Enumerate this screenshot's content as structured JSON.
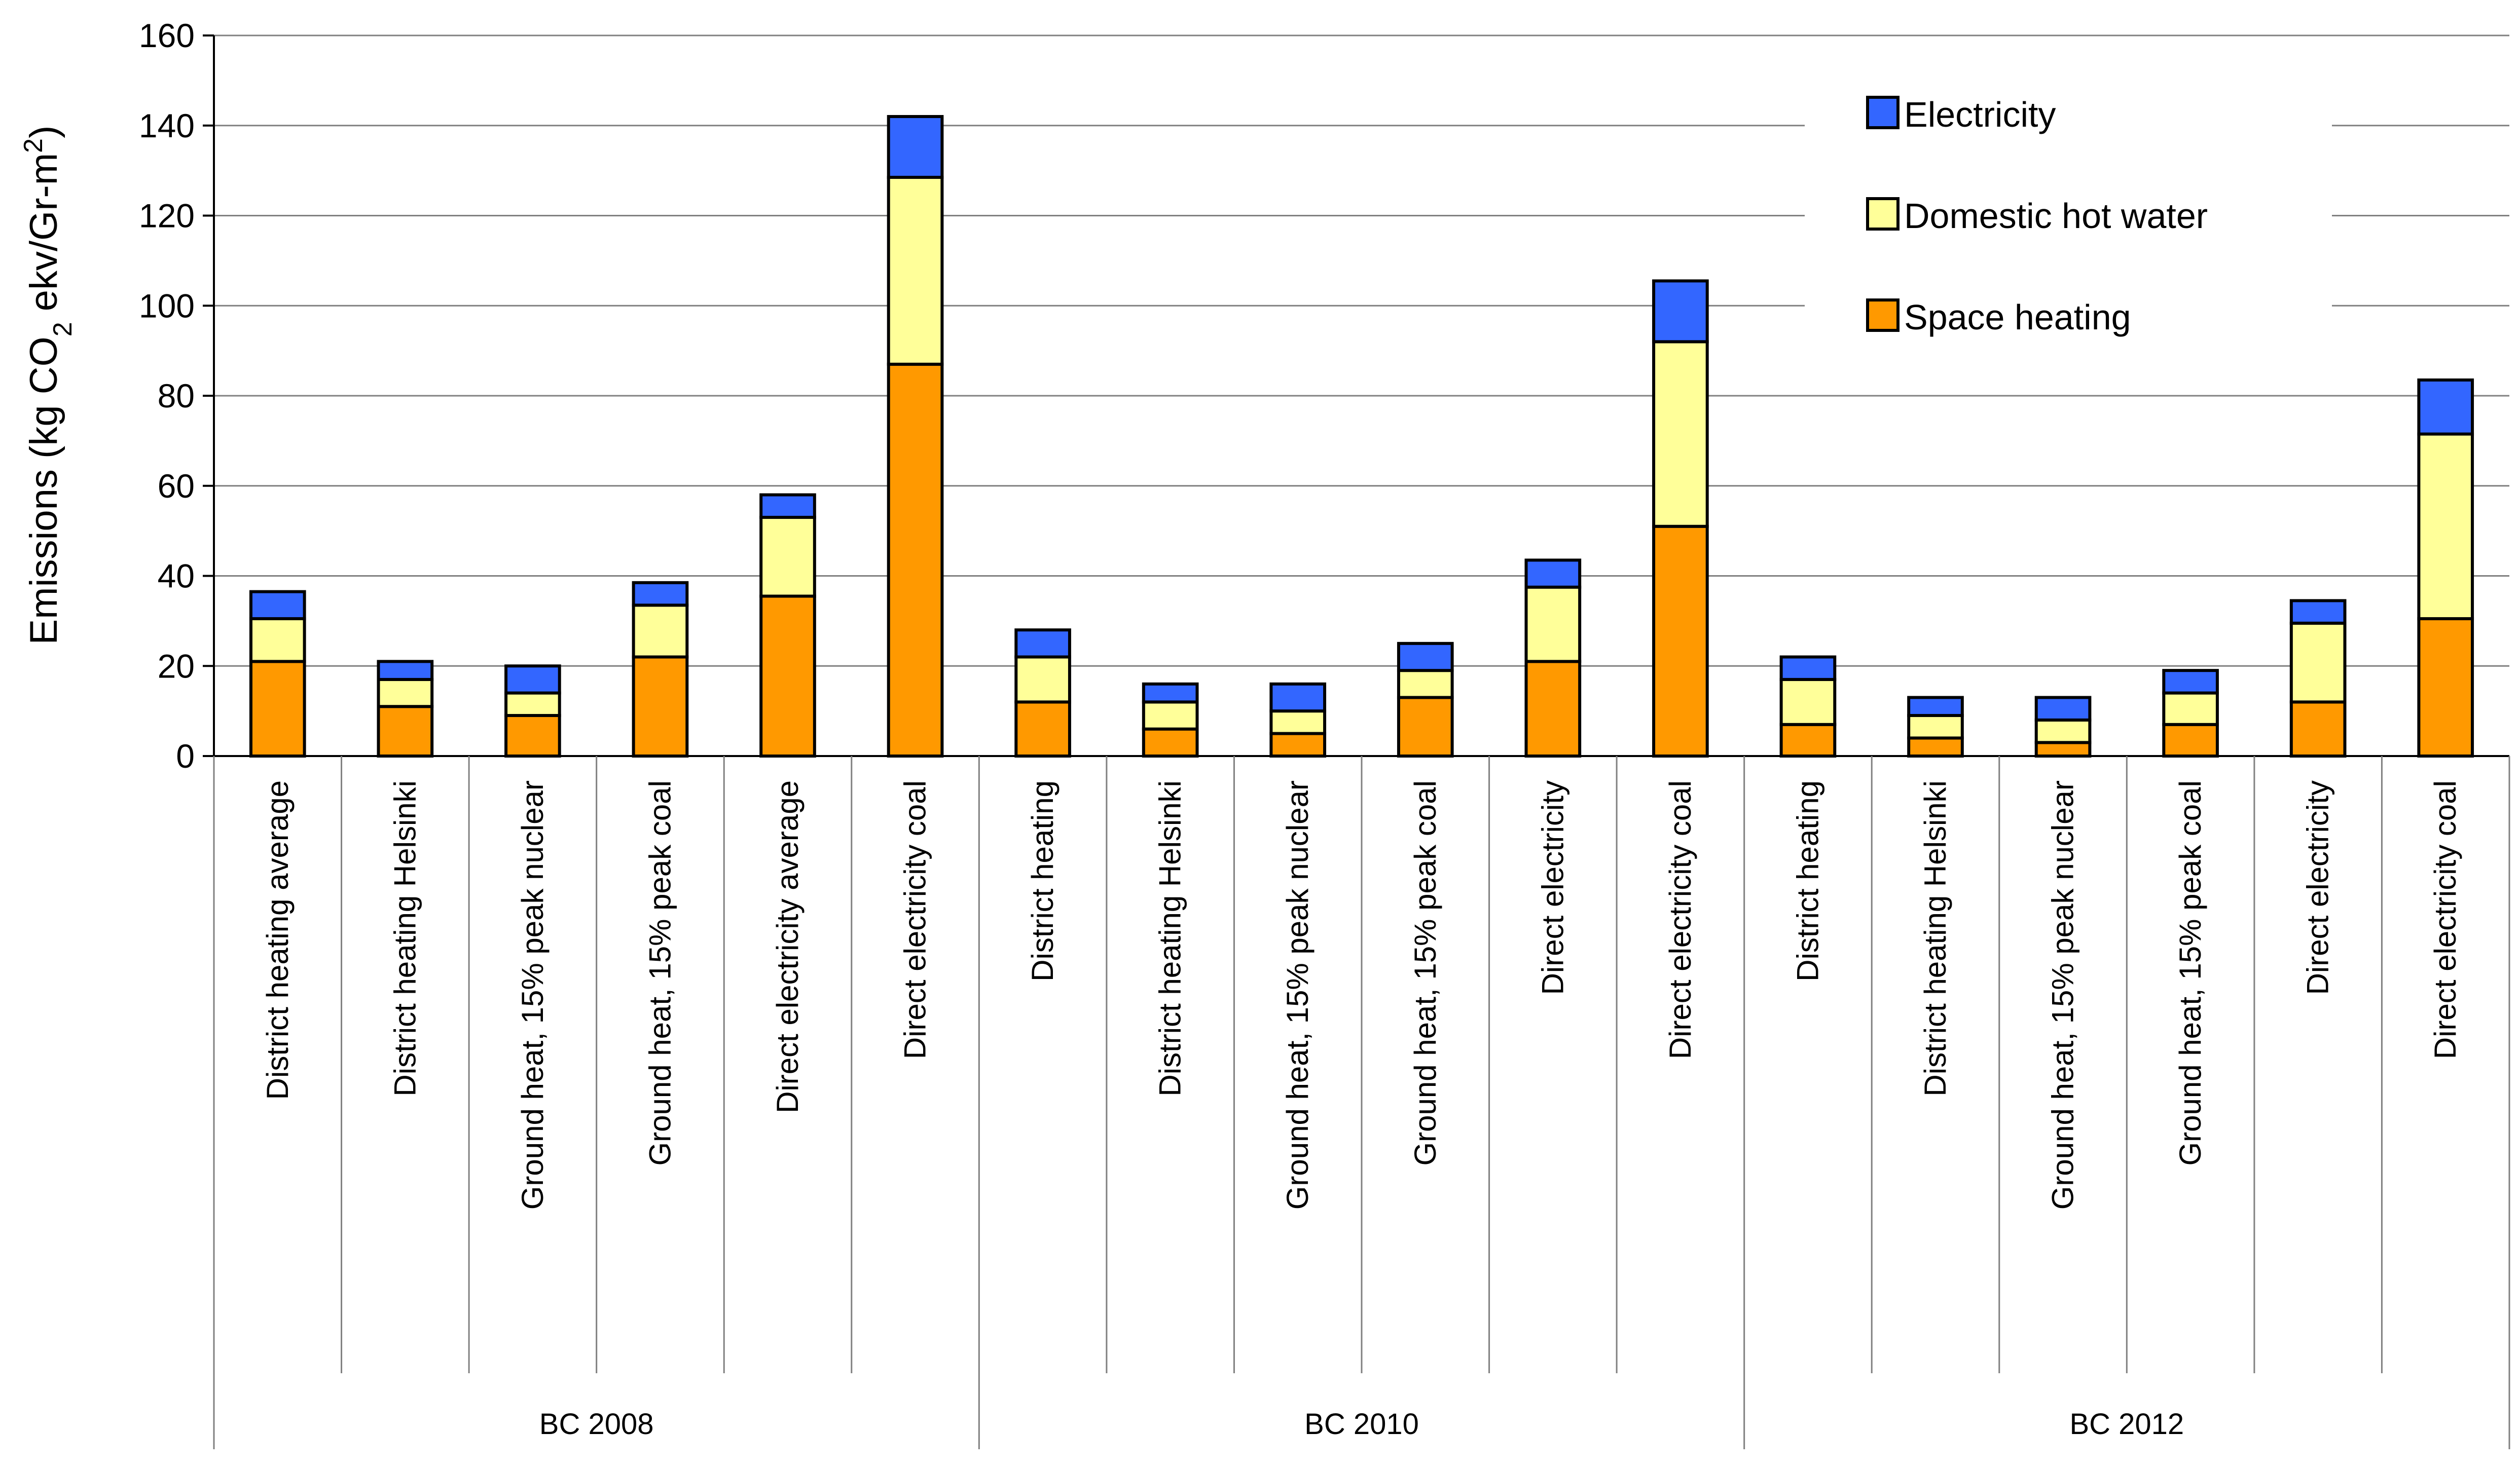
{
  "chart_data": {
    "type": "bar",
    "stacked": true,
    "title": "",
    "ylabel": {
      "prefix": "Emissions (kg CO",
      "sub": "2",
      "middle": " ekv/Gr-m",
      "sup": "2",
      "suffix": ")"
    },
    "ylim": [
      0,
      160
    ],
    "yticks": [
      0,
      20,
      40,
      60,
      80,
      100,
      120,
      140,
      160
    ],
    "grid": true,
    "legend_position": "top-right",
    "categories": [
      "District heating  average",
      "District heating  Helsinki",
      "Ground heat, 15% peak nuclear",
      "Ground heat,  15% peak coal",
      "Direct electricity  average",
      "Direct electricity  coal",
      "District heating",
      "District heating  Helsinki",
      "Ground heat, 15% peak nuclear",
      "Ground heat,  15% peak coal",
      "Direct electricity",
      "Direct electricity  coal",
      "District heating",
      "District heating  Helsinki",
      "Ground heat, 15% peak nuclear",
      "Ground heat,  15% peak coal",
      "Direct electricity",
      "Direct electricity  coal"
    ],
    "groups": [
      {
        "label": "BC 2008",
        "start": 0,
        "count": 6
      },
      {
        "label": "BC 2010",
        "start": 6,
        "count": 6
      },
      {
        "label": "BC 2012",
        "start": 12,
        "count": 6
      }
    ],
    "series": [
      {
        "name": "Space heating",
        "color": "#ff9900",
        "values": [
          21,
          11,
          9,
          22,
          35.5,
          87,
          12,
          6,
          5,
          13,
          21,
          51,
          7,
          4,
          3,
          7,
          12,
          30.5
        ]
      },
      {
        "name": "Domestic hot water",
        "color": "#ffff99",
        "values": [
          9.5,
          6,
          5,
          11.5,
          17.5,
          41.5,
          10,
          6,
          5,
          6,
          16.5,
          41,
          10,
          5,
          5,
          7,
          17.5,
          41
        ]
      },
      {
        "name": "Electricity",
        "color": "#3366ff",
        "values": [
          6,
          4,
          6,
          5,
          5,
          13.5,
          6,
          4,
          6,
          6,
          6,
          13.5,
          5,
          4,
          5,
          5,
          5,
          12
        ]
      }
    ],
    "legend_order": [
      "Electricity",
      "Domestic hot water",
      "Space heating"
    ]
  }
}
